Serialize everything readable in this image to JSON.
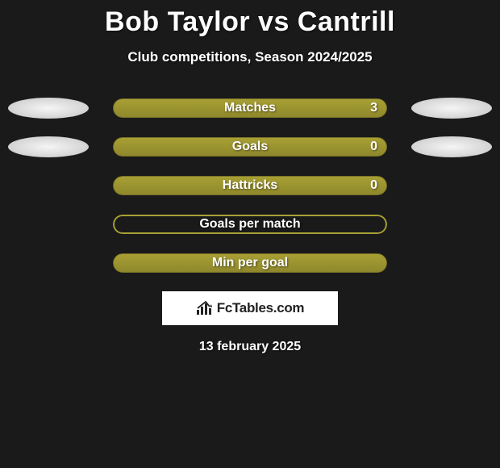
{
  "header": {
    "title": "Bob Taylor vs Cantrill",
    "subtitle": "Club competitions, Season 2024/2025"
  },
  "colors": {
    "bar_primary": "#a8a034",
    "bar_secondary": "#8f882c",
    "bar_border": "#7a7326",
    "background": "#1a1a1a"
  },
  "bars": [
    {
      "label": "Matches",
      "value": "3",
      "has_value": true,
      "left_ellipse": true,
      "right_ellipse": true,
      "fill_style": "solid"
    },
    {
      "label": "Goals",
      "value": "0",
      "has_value": true,
      "left_ellipse": true,
      "right_ellipse": true,
      "fill_style": "solid"
    },
    {
      "label": "Hattricks",
      "value": "0",
      "has_value": true,
      "left_ellipse": false,
      "right_ellipse": false,
      "fill_style": "solid"
    },
    {
      "label": "Goals per match",
      "value": "",
      "has_value": false,
      "left_ellipse": false,
      "right_ellipse": false,
      "fill_style": "outline"
    },
    {
      "label": "Min per goal",
      "value": "",
      "has_value": false,
      "left_ellipse": false,
      "right_ellipse": false,
      "fill_style": "solid"
    }
  ],
  "footer": {
    "logo_text": "FcTables.com",
    "date": "13 february 2025"
  }
}
